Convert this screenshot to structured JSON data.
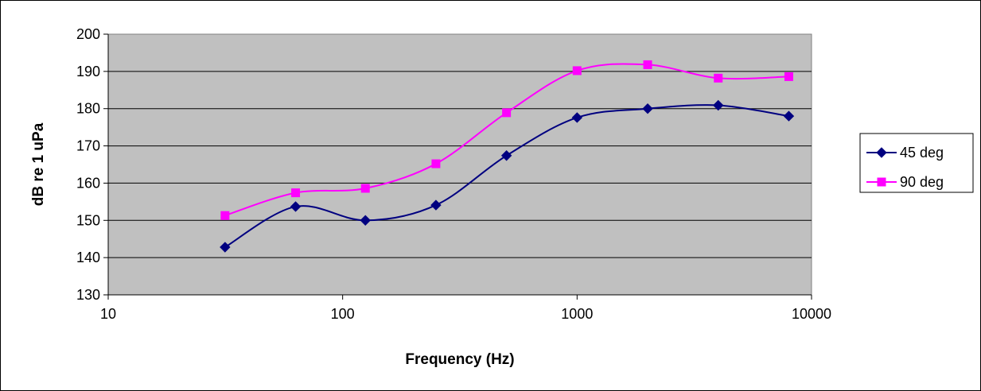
{
  "chart_data": {
    "type": "line",
    "title": "",
    "xlabel": "Frequency (Hz)",
    "ylabel": "dB re 1 uPa",
    "xscale": "log",
    "xlim": [
      10,
      10000
    ],
    "ylim": [
      130,
      200
    ],
    "xticks": [
      10,
      100,
      1000,
      10000
    ],
    "yticks": [
      130,
      140,
      150,
      160,
      170,
      180,
      190,
      200
    ],
    "xtick_labels": [
      "10",
      "100",
      "1000",
      "10000"
    ],
    "ytick_labels": [
      "130",
      "140",
      "150",
      "160",
      "170",
      "180",
      "190",
      "200"
    ],
    "grid": "horizontal",
    "plot_background": "#c0c0c0",
    "legend_position": "right",
    "series": [
      {
        "name": "45 deg",
        "color": "#000080",
        "marker": "diamond",
        "smooth": true,
        "x": [
          31.5,
          63,
          125,
          250,
          500,
          1000,
          2000,
          4000,
          8000
        ],
        "y": [
          142.8,
          153.7,
          150.0,
          154.1,
          167.4,
          177.6,
          180.0,
          180.9,
          178.0
        ]
      },
      {
        "name": "90 deg",
        "color": "#ff00ff",
        "marker": "square",
        "smooth": true,
        "x": [
          31.5,
          63,
          125,
          250,
          500,
          1000,
          2000,
          4000,
          8000
        ],
        "y": [
          151.3,
          157.4,
          158.6,
          165.2,
          178.9,
          190.2,
          191.8,
          188.2,
          188.6
        ]
      }
    ]
  }
}
